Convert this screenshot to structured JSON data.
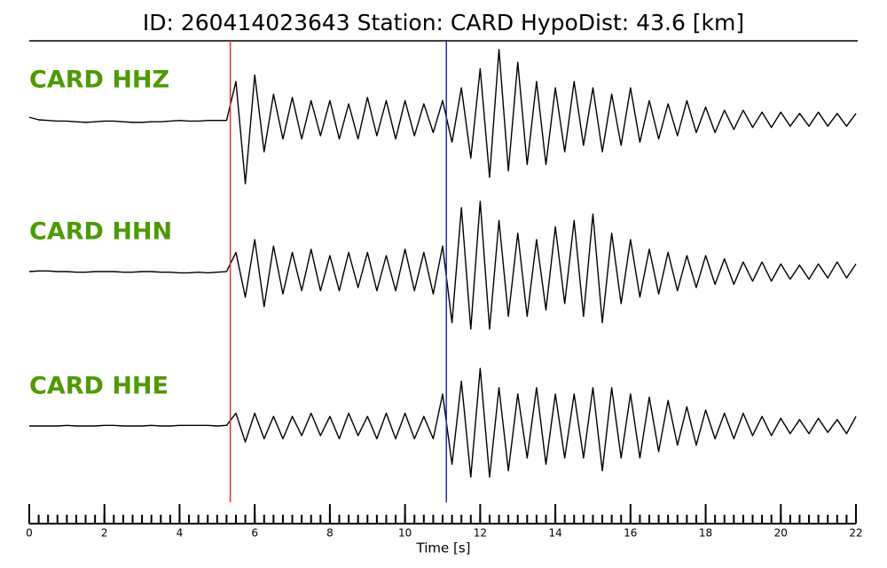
{
  "chart_data": {
    "type": "line",
    "title": "ID: 260414023643   Station: CARD   HypoDist:    43.6 [km]",
    "xlabel": "Time [s]",
    "xlim": [
      0,
      22
    ],
    "xticks": [
      0,
      2,
      4,
      6,
      8,
      10,
      12,
      14,
      16,
      18,
      20,
      22
    ],
    "xminorticks": [
      0,
      0.25,
      0.5,
      0.75,
      1,
      1.25,
      1.5,
      1.75,
      2,
      2.25,
      2.5,
      2.75,
      3,
      3.25,
      3.5,
      3.75,
      4,
      4.25,
      4.5,
      4.75,
      5,
      5.25,
      5.5,
      5.75,
      6,
      6.25,
      6.5,
      6.75,
      7,
      7.25,
      7.5,
      7.75,
      8,
      8.25,
      8.5,
      8.75,
      9,
      9.25,
      9.5,
      9.75,
      10,
      10.25,
      10.5,
      10.75,
      11,
      11.25,
      11.5,
      11.75,
      12,
      12.25,
      12.5,
      12.75,
      13,
      13.25,
      13.5,
      13.75,
      14,
      14.25,
      14.5,
      14.75,
      15,
      15.25,
      15.5,
      15.75,
      16,
      16.25,
      16.5,
      16.75,
      17,
      17.25,
      17.5,
      17.75,
      18,
      18.25,
      18.5,
      18.75,
      19,
      19.25,
      19.5,
      19.75,
      20,
      20.25,
      20.5,
      20.75,
      21,
      21.25,
      21.5,
      21.75,
      22
    ],
    "picks": [
      {
        "value": 5.35,
        "color": "#e8302a"
      },
      {
        "value": 11.1,
        "color": "#2b2bbf"
      }
    ],
    "label_color": "#4e9a06",
    "x": [
      0,
      0.25,
      0.5,
      0.75,
      1,
      1.25,
      1.5,
      1.75,
      2,
      2.25,
      2.5,
      2.75,
      3,
      3.25,
      3.5,
      3.75,
      4,
      4.25,
      4.5,
      4.75,
      5,
      5.25,
      5.5,
      5.75,
      6,
      6.25,
      6.5,
      6.75,
      7,
      7.25,
      7.5,
      7.75,
      8,
      8.25,
      8.5,
      8.75,
      9,
      9.25,
      9.5,
      9.75,
      10,
      10.25,
      10.5,
      10.75,
      11,
      11.25,
      11.5,
      11.75,
      12,
      12.25,
      12.5,
      12.75,
      13,
      13.25,
      13.5,
      13.75,
      14,
      14.25,
      14.5,
      14.75,
      15,
      15.25,
      15.5,
      15.75,
      16,
      16.25,
      16.5,
      16.75,
      17,
      17.25,
      17.5,
      17.75,
      18,
      18.25,
      18.5,
      18.75,
      19,
      19.25,
      19.5,
      19.75,
      20,
      20.25,
      20.5,
      20.75,
      21,
      21.25,
      21.5,
      21.75,
      22
    ],
    "series": [
      {
        "name": "CARD HHZ",
        "color": "#000000",
        "values": [
          0.04,
          0.0,
          -0.01,
          -0.02,
          -0.02,
          -0.03,
          -0.04,
          -0.03,
          -0.02,
          -0.02,
          -0.03,
          -0.04,
          -0.04,
          -0.03,
          -0.03,
          -0.02,
          -0.01,
          -0.02,
          -0.02,
          -0.01,
          -0.01,
          -0.01,
          0.6,
          -1.0,
          0.7,
          -0.5,
          0.4,
          -0.3,
          0.35,
          -0.3,
          0.3,
          -0.25,
          0.3,
          -0.3,
          0.25,
          -0.3,
          0.35,
          -0.25,
          0.3,
          -0.3,
          0.3,
          -0.25,
          0.25,
          -0.2,
          0.3,
          -0.35,
          0.5,
          -0.6,
          0.8,
          -0.9,
          1.1,
          -0.8,
          0.9,
          -0.7,
          0.6,
          -0.7,
          0.5,
          -0.5,
          0.6,
          -0.4,
          0.5,
          -0.5,
          0.4,
          -0.4,
          0.5,
          -0.35,
          0.3,
          -0.3,
          0.25,
          -0.25,
          0.3,
          -0.2,
          0.2,
          -0.2,
          0.15,
          -0.15,
          0.15,
          -0.12,
          0.12,
          -0.12,
          0.12,
          -0.1,
          0.1,
          -0.1,
          0.12,
          -0.1,
          0.1,
          -0.1,
          0.1
        ]
      },
      {
        "name": "CARD HHN",
        "color": "#000000",
        "values": [
          0.0,
          0.01,
          0.01,
          0.0,
          0.0,
          -0.01,
          -0.01,
          0.0,
          0.0,
          0.0,
          -0.01,
          -0.01,
          0.0,
          0.0,
          -0.01,
          -0.01,
          -0.02,
          -0.02,
          -0.01,
          -0.02,
          -0.01,
          0.0,
          0.3,
          -0.4,
          0.5,
          -0.55,
          0.4,
          -0.35,
          0.3,
          -0.3,
          0.35,
          -0.3,
          0.25,
          -0.3,
          0.3,
          -0.25,
          0.3,
          -0.3,
          0.25,
          -0.3,
          0.35,
          -0.3,
          0.3,
          -0.35,
          0.4,
          -0.8,
          1.0,
          -0.9,
          1.1,
          -0.9,
          0.8,
          -0.7,
          0.6,
          -0.7,
          0.5,
          -0.6,
          0.7,
          -0.5,
          0.8,
          -0.7,
          0.9,
          -0.8,
          0.6,
          -0.5,
          0.5,
          -0.4,
          0.35,
          -0.35,
          0.3,
          -0.3,
          0.25,
          -0.25,
          0.25,
          -0.2,
          0.2,
          -0.2,
          0.15,
          -0.15,
          0.15,
          -0.15,
          0.12,
          -0.12,
          0.1,
          -0.12,
          0.12,
          -0.1,
          0.15,
          -0.1,
          0.12
        ]
      },
      {
        "name": "CARD HHE",
        "color": "#000000",
        "values": [
          0.0,
          0.0,
          0.0,
          0.0,
          0.01,
          0.0,
          0.0,
          0.0,
          0.01,
          0.01,
          0.0,
          0.0,
          0.0,
          0.01,
          0.0,
          0.0,
          0.01,
          0.01,
          0.01,
          0.01,
          0.0,
          0.01,
          0.2,
          -0.25,
          0.2,
          -0.2,
          0.15,
          -0.2,
          0.15,
          -0.15,
          0.2,
          -0.15,
          0.15,
          -0.2,
          0.2,
          -0.15,
          0.15,
          -0.2,
          0.2,
          -0.2,
          0.2,
          -0.2,
          0.15,
          -0.2,
          0.5,
          -0.6,
          0.7,
          -0.8,
          0.9,
          -0.8,
          0.6,
          -0.7,
          0.5,
          -0.5,
          0.6,
          -0.6,
          0.5,
          -0.5,
          0.5,
          -0.5,
          0.6,
          -0.7,
          0.6,
          -0.5,
          0.5,
          -0.5,
          0.45,
          -0.4,
          0.4,
          -0.3,
          0.3,
          -0.3,
          0.25,
          -0.2,
          0.2,
          -0.2,
          0.2,
          -0.15,
          0.15,
          -0.15,
          0.12,
          -0.12,
          0.1,
          -0.12,
          0.12,
          -0.1,
          0.1,
          -0.12,
          0.15
        ]
      }
    ]
  }
}
